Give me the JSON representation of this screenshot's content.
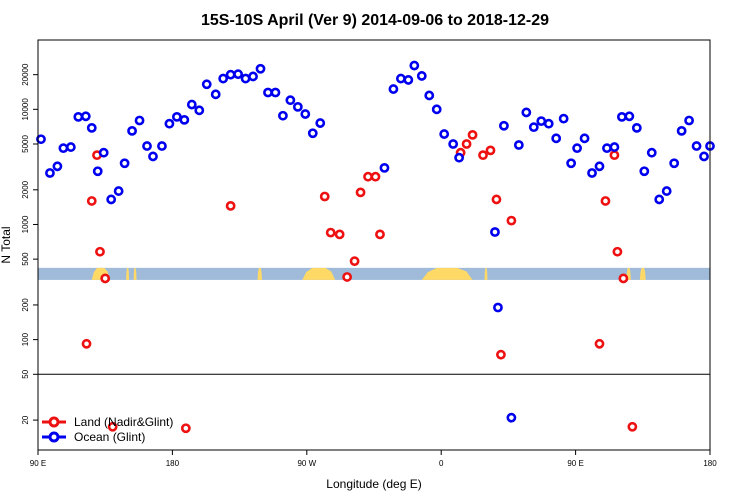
{
  "chart_data": {
    "type": "scatter",
    "title": "15S-10S April (Ver 9)   2014-09-06 to 2018-12-29",
    "xlabel": "Longitude (deg E)",
    "ylabel": "N Total",
    "x_ticks": [
      {
        "value": 90,
        "label": "90 E"
      },
      {
        "value": 180,
        "label": "180"
      },
      {
        "value": 270,
        "label": "90 W"
      },
      {
        "value": 360,
        "label": "0"
      },
      {
        "value": 450,
        "label": "90 E"
      },
      {
        "value": 540,
        "label": "180"
      }
    ],
    "y_ticks": [
      {
        "value": 20,
        "label": "20"
      },
      {
        "value": 50,
        "label": "50"
      },
      {
        "value": 100,
        "label": "100"
      },
      {
        "value": 200,
        "label": "200"
      },
      {
        "value": 500,
        "label": "500"
      },
      {
        "value": 1000,
        "label": "1000"
      },
      {
        "value": 2000,
        "label": "2000"
      },
      {
        "value": 5000,
        "label": "5000"
      },
      {
        "value": 10000,
        "label": "10000"
      },
      {
        "value": 20000,
        "label": "20000"
      }
    ],
    "xlim": [
      90,
      540
    ],
    "ylim": [
      11,
      40000
    ],
    "y_scale": "log",
    "reference_line_y": 50,
    "land_band": {
      "color": "#ffd966",
      "ocean_color": "#9fbbd9",
      "y_range": [
        330,
        420
      ],
      "land_ranges": [
        [
          126,
          138
        ],
        [
          154,
          156
        ],
        [
          149,
          151
        ],
        [
          267,
          289
        ],
        [
          237,
          240
        ],
        [
          347,
          381
        ],
        [
          389,
          391
        ],
        [
          484,
          487
        ],
        [
          493,
          497
        ]
      ]
    },
    "legend_position": "bottom-left",
    "series": [
      {
        "name": "Land (Nadir&Glint)",
        "color": "#ee1111",
        "points": [
          [
            122.5,
            92
          ],
          [
            126,
            1600
          ],
          [
            129.5,
            4000
          ],
          [
            131.5,
            580
          ],
          [
            135,
            340
          ],
          [
            140,
            17.5
          ],
          [
            189,
            17
          ],
          [
            219,
            1450
          ],
          [
            282,
            1750
          ],
          [
            286,
            850
          ],
          [
            292,
            820
          ],
          [
            297,
            350
          ],
          [
            302,
            480
          ],
          [
            306,
            1900
          ],
          [
            311,
            2600
          ],
          [
            316,
            2600
          ],
          [
            319,
            820
          ],
          [
            373,
            4200
          ],
          [
            377,
            5000
          ],
          [
            381,
            6000
          ],
          [
            388,
            4000
          ],
          [
            393,
            4400
          ],
          [
            397,
            1650
          ],
          [
            400,
            74
          ],
          [
            407,
            1080
          ],
          [
            466,
            92
          ],
          [
            470,
            1600
          ],
          [
            476,
            4000
          ],
          [
            478,
            580
          ],
          [
            482,
            340
          ],
          [
            488,
            17.5
          ]
        ]
      },
      {
        "name": "Ocean (Glint)",
        "color": "#0000ee",
        "points": [
          [
            92,
            5500
          ],
          [
            98,
            2800
          ],
          [
            103,
            3200
          ],
          [
            107,
            4600
          ],
          [
            112,
            4700
          ],
          [
            117,
            8600
          ],
          [
            122,
            8700
          ],
          [
            126,
            6900
          ],
          [
            130,
            2900
          ],
          [
            134,
            4200
          ],
          [
            139,
            1650
          ],
          [
            144,
            1950
          ],
          [
            148,
            3400
          ],
          [
            153,
            6500
          ],
          [
            158,
            8000
          ],
          [
            163,
            4800
          ],
          [
            167,
            3900
          ],
          [
            173,
            4800
          ],
          [
            178,
            7500
          ],
          [
            183,
            8600
          ],
          [
            188,
            8100
          ],
          [
            193,
            11000
          ],
          [
            198,
            9800
          ],
          [
            203,
            16500
          ],
          [
            209,
            13500
          ],
          [
            214,
            18500
          ],
          [
            219,
            20000
          ],
          [
            224,
            20200
          ],
          [
            229,
            18500
          ],
          [
            234,
            19300
          ],
          [
            239,
            22500
          ],
          [
            244,
            14000
          ],
          [
            249,
            14000
          ],
          [
            254,
            8800
          ],
          [
            259,
            12000
          ],
          [
            264,
            10500
          ],
          [
            269,
            9100
          ],
          [
            274,
            6200
          ],
          [
            279,
            7600
          ],
          [
            322,
            3100
          ],
          [
            328,
            15000
          ],
          [
            333,
            18500
          ],
          [
            338,
            18000
          ],
          [
            342,
            24000
          ],
          [
            347,
            19500
          ],
          [
            352,
            13200
          ],
          [
            357,
            10000
          ],
          [
            362,
            6100
          ],
          [
            368,
            5000
          ],
          [
            372,
            3800
          ],
          [
            396,
            860
          ],
          [
            398,
            190
          ],
          [
            402,
            7200
          ],
          [
            407,
            21
          ],
          [
            412,
            4900
          ],
          [
            417,
            9400
          ],
          [
            422,
            7000
          ],
          [
            427,
            7900
          ],
          [
            432,
            7500
          ],
          [
            437,
            5600
          ],
          [
            442,
            8300
          ],
          [
            447,
            3400
          ],
          [
            451,
            4600
          ],
          [
            456,
            5600
          ],
          [
            461,
            2800
          ],
          [
            466,
            3200
          ],
          [
            471,
            4600
          ],
          [
            476,
            4700
          ],
          [
            481,
            8600
          ],
          [
            486,
            8700
          ],
          [
            491,
            6900
          ],
          [
            496,
            2900
          ],
          [
            501,
            4200
          ],
          [
            506,
            1650
          ],
          [
            511,
            1950
          ],
          [
            516,
            3400
          ],
          [
            521,
            6500
          ],
          [
            526,
            8000
          ],
          [
            531,
            4800
          ],
          [
            536,
            3900
          ],
          [
            540,
            4800
          ]
        ]
      }
    ]
  }
}
